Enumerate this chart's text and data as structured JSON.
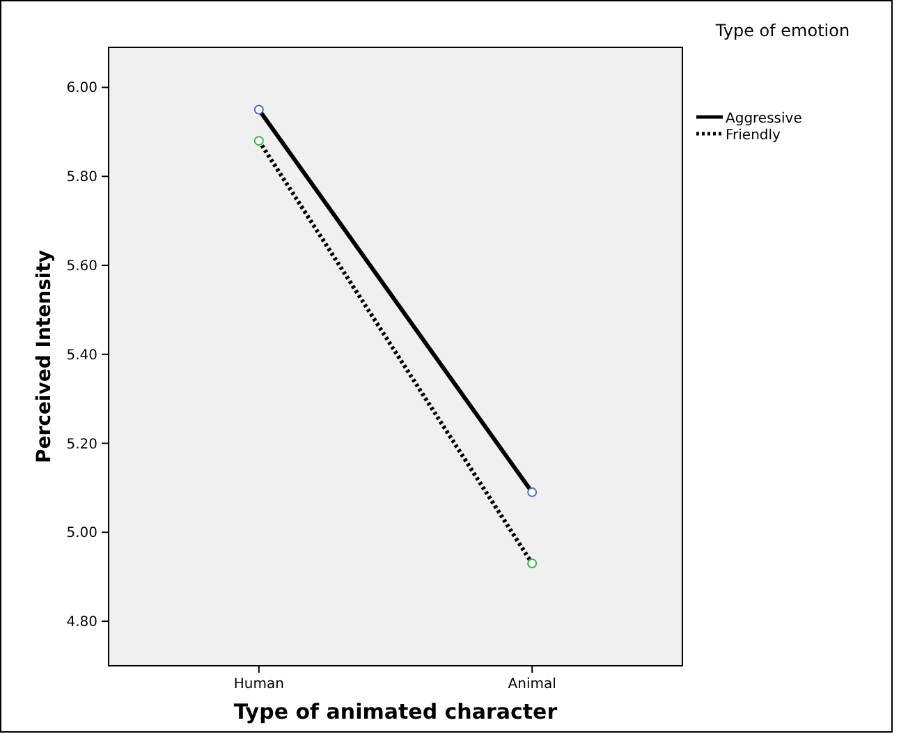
{
  "chart_data": {
    "type": "line",
    "xlabel": "Type of animated character",
    "ylabel": "Perceived Intensity",
    "legend_title": "Type of emotion",
    "categories": [
      "Human",
      "Animal"
    ],
    "series": [
      {
        "name": "Aggressive",
        "color": "#000000",
        "line_style": "solid",
        "values": [
          5.95,
          5.09
        ]
      },
      {
        "name": "Friendly",
        "color": "#000000",
        "line_style": "dotted",
        "values": [
          5.88,
          4.93
        ]
      }
    ],
    "ylim": [
      4.7,
      6.09
    ],
    "yticks": [
      {
        "value": 4.8,
        "label": "4.80"
      },
      {
        "value": 5.0,
        "label": "5.00"
      },
      {
        "value": 5.2,
        "label": "5.20"
      },
      {
        "value": 5.4,
        "label": "5.40"
      },
      {
        "value": 5.6,
        "label": "5.60"
      },
      {
        "value": 5.8,
        "label": "5.80"
      },
      {
        "value": 6.0,
        "label": "6.00"
      }
    ],
    "marker": "circle",
    "legend": "top right",
    "grid": false
  }
}
